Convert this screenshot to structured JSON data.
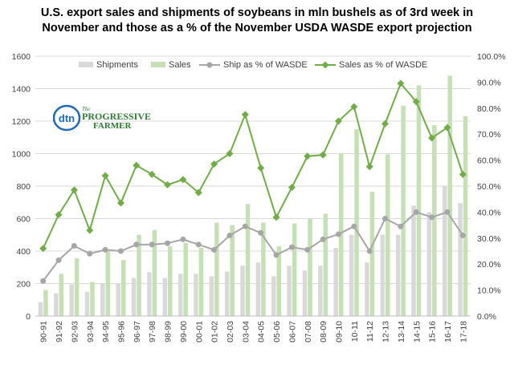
{
  "chart_data": {
    "type": "bar",
    "title_line1": "U.S. export sales and shipments of soybeans in mln bushels as of 3rd week in",
    "title_line2": "November and those as a %  of the November USDA WASDE  export projection",
    "categories": [
      "90-91",
      "91-92",
      "92-93",
      "93-94",
      "94-95",
      "95-96",
      "96-97",
      "97-98",
      "98-99",
      "99-00",
      "00-01",
      "01-02",
      "02-03",
      "03-04",
      "04-05",
      "05-06",
      "06-07",
      "07-08",
      "08-09",
      "09-10",
      "10-11",
      "11-12",
      "12-13",
      "13-14",
      "14-15",
      "15-16",
      "16-17",
      "17-18"
    ],
    "series": [
      {
        "name": "Shipments",
        "kind": "bar",
        "axis": "left",
        "color": "#d9d9d9",
        "values": [
          85,
          140,
          195,
          150,
          200,
          200,
          235,
          270,
          235,
          260,
          260,
          245,
          275,
          310,
          330,
          245,
          310,
          280,
          310,
          420,
          500,
          330,
          500,
          500,
          680,
          640,
          800,
          695
        ]
      },
      {
        "name": "Sales",
        "kind": "bar",
        "axis": "left",
        "color": "#c5e0b4",
        "values": [
          160,
          260,
          355,
          210,
          400,
          345,
          500,
          530,
          430,
          450,
          420,
          575,
          560,
          690,
          575,
          430,
          570,
          600,
          630,
          1000,
          1150,
          765,
          995,
          1295,
          1420,
          1175,
          1480,
          1230
        ]
      },
      {
        "name": "Ship as % of WASDE",
        "kind": "line",
        "axis": "right",
        "color": "#a6a6a6",
        "values": [
          13.5,
          21.5,
          27,
          24,
          25.5,
          25,
          27.5,
          27.5,
          28,
          29.5,
          27.5,
          25.5,
          31,
          34.5,
          32,
          23.5,
          26.5,
          25.5,
          29.5,
          31.5,
          34.5,
          25,
          37.5,
          34.5,
          40,
          38,
          40,
          31
        ]
      },
      {
        "name": "Sales as % of WASDE",
        "kind": "line",
        "axis": "right",
        "color": "#70ad47",
        "values": [
          26,
          39,
          48.5,
          33,
          54,
          43.5,
          58,
          54.5,
          50.5,
          52.5,
          47.5,
          58.5,
          62.5,
          77.5,
          57,
          38,
          49.5,
          61.5,
          62,
          75,
          80.5,
          57.5,
          74,
          89.5,
          82.5,
          68.5,
          72.5,
          54.5
        ]
      }
    ],
    "y_left_ticks": [
      "0",
      "200",
      "400",
      "600",
      "800",
      "1000",
      "1200",
      "1400",
      "1600"
    ],
    "y_right_ticks": [
      "0.0%",
      "10.0%",
      "20.0%",
      "30.0%",
      "40.0%",
      "50.0%",
      "60.0%",
      "70.0%",
      "80.0%",
      "90.0%",
      "100.0%"
    ],
    "ylim_left": [
      0,
      1600
    ],
    "ylim_right": [
      0,
      100
    ],
    "grid": true,
    "legend_position": "top"
  },
  "logo": {
    "mark": "dtn",
    "line1": "The",
    "line2": "PROGRESSIVE",
    "line3": "FARMER",
    "mark_color": "#1f6ab3",
    "text_color": "#2e7d32"
  },
  "colors": {
    "grid": "#d9d9d9",
    "axis_text": "#404040"
  }
}
